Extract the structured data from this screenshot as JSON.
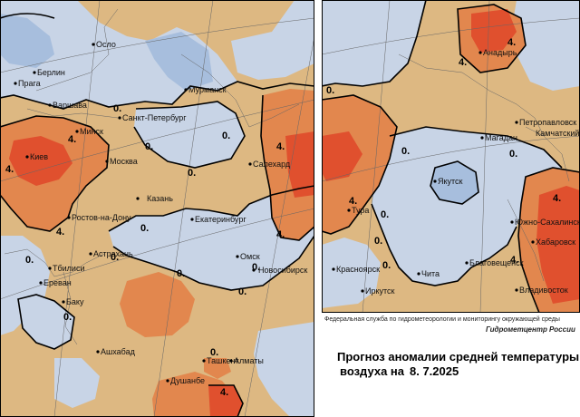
{
  "left_cities": [
    "Осло",
    "Берлин",
    "Прага",
    "Варшава",
    "Минск",
    "Киев",
    "Москва",
    "Санкт-Петербург",
    "Мурманск",
    "Салехард",
    "Казань",
    "Ростов-на-Дону",
    "Екатеринбург",
    "Астрахань",
    "Тбилиси",
    "Ереван",
    "Баку",
    "Омск",
    "Новосибирск",
    "Ашхабад",
    "Ташкент",
    "Алматы",
    "Душанбе"
  ],
  "right_cities": [
    "Анадырь",
    "Петропавловск",
    "Камчатский",
    "Магадан",
    "Якутск",
    "Тура",
    "Южно-Сахалинск",
    "Хабаровск",
    "Благовещенск",
    "Красноярск",
    "Чита",
    "Иркутск",
    "Владивосток"
  ],
  "contour_labels": [
    "0.",
    "4."
  ],
  "footer": {
    "agency": "Федеральная служба по гидрометеорологии и мониторингу окружающей среды",
    "credit": "Гидрометцентр России",
    "title_line1": "Прогноз аномалии средней температуры",
    "title_line2": "воздуха на",
    "date": "8. 7.2025"
  },
  "colors": {
    "cold": "#c8d4e6",
    "cold_deep": "#a7bedd",
    "warm": "#ddb882",
    "hot": "#e2874e",
    "very_hot": "#e0502e",
    "contour": "#000000"
  }
}
